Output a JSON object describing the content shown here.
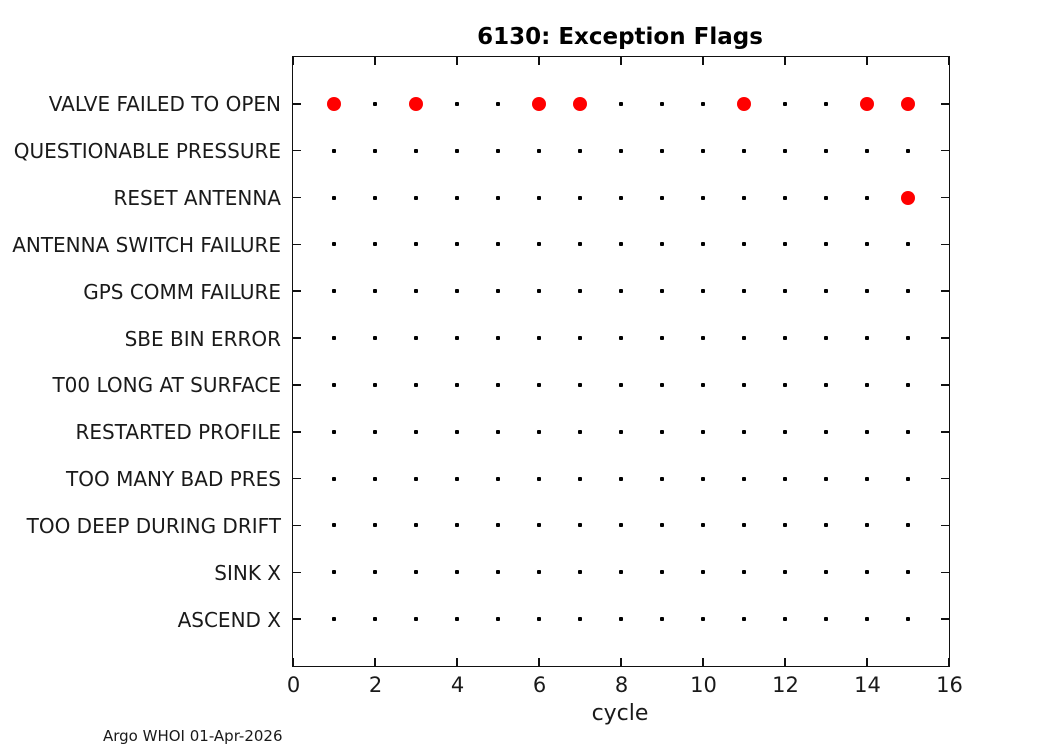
{
  "footer": {
    "credit": "Argo WHOI 01-Apr-2026"
  },
  "chart_data": {
    "type": "scatter",
    "title": "6130: Exception Flags",
    "xlabel": "cycle",
    "ylabel": "",
    "xlim": [
      0,
      16
    ],
    "x_ticks": [
      0,
      2,
      4,
      6,
      8,
      10,
      12,
      14,
      16
    ],
    "grid": false,
    "legend": false,
    "categories": [
      "VALVE FAILED TO OPEN",
      "QUESTIONABLE PRESSURE",
      "RESET ANTENNA",
      "ANTENNA SWITCH FAILURE",
      "GPS COMM FAILURE",
      "SBE BIN ERROR",
      "T00 LONG AT SURFACE",
      "RESTARTED PROFILE",
      "TOO MANY BAD PRES",
      "TOO DEEP DURING DRIFT",
      "SINK X",
      "ASCEND X"
    ],
    "series": [
      {
        "name": "cycle-observed-no-flag",
        "marker": "small-dot",
        "color": "#000000",
        "applies_to_categories": "all",
        "cycles": [
          1,
          2,
          3,
          4,
          5,
          6,
          7,
          8,
          9,
          10,
          11,
          12,
          13,
          14,
          15
        ]
      },
      {
        "name": "exception-raised",
        "marker": "large-dot",
        "color": "#ff0000",
        "points": [
          {
            "category": "VALVE FAILED TO OPEN",
            "cycles": [
              1,
              3,
              6,
              7,
              11,
              14,
              15
            ]
          },
          {
            "category": "RESET ANTENNA",
            "cycles": [
              15
            ]
          }
        ]
      }
    ]
  }
}
